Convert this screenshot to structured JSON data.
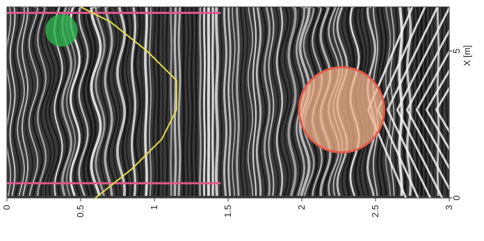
{
  "chart_data": {
    "type": "heatmap",
    "title": "",
    "xlabel": "",
    "ylabel": "X [m]",
    "x_ticks": [
      "0",
      "0.5",
      "1",
      "1.5",
      "2",
      "2.5",
      "3"
    ],
    "y_ticks": [
      "0",
      "5"
    ],
    "xlim": [
      0,
      3
    ],
    "ylim": [
      0,
      6.5
    ],
    "colormap": "grayscale radargram (alternating black/white reflection bands)",
    "markers": {
      "vertical_lines_x": [
        0.5,
        6.3
      ],
      "vertical_lines_depth_span": [
        0,
        1.45
      ],
      "line_color": "#e0588e",
      "yellow_curve": {
        "color": "#e6e04a",
        "points": [
          {
            "depth": 0.6,
            "x": 0
          },
          {
            "depth": 0.85,
            "x": 1
          },
          {
            "depth": 1.05,
            "x": 2
          },
          {
            "depth": 1.15,
            "x": 3
          },
          {
            "depth": 1.15,
            "x": 4
          },
          {
            "depth": 0.95,
            "x": 5
          },
          {
            "depth": 0.7,
            "x": 6
          },
          {
            "depth": 0.5,
            "x": 6.5
          }
        ]
      },
      "green_circle": {
        "depth": 0.37,
        "x": 5.7,
        "radius_x": 0.55,
        "color": "#2db24f"
      },
      "orange_circle": {
        "depth": 2.27,
        "x": 3.0,
        "radius_x": 1.45,
        "fill": "#f3b38c",
        "stroke": "#e45a4a"
      }
    }
  }
}
